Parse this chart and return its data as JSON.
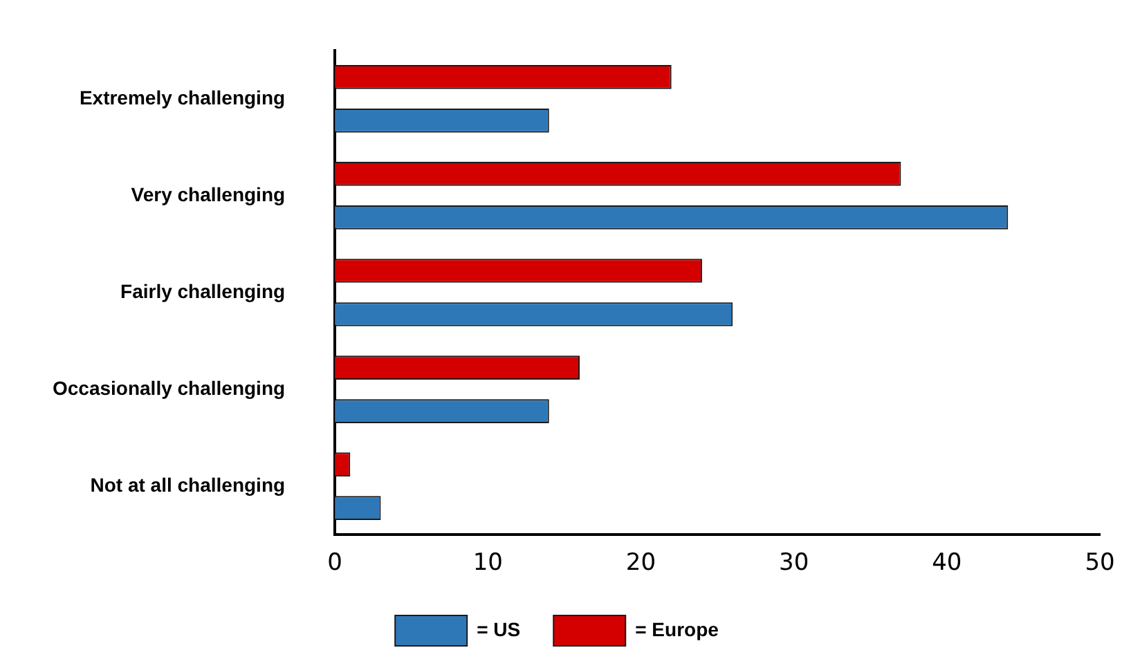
{
  "chart_data": {
    "type": "bar",
    "orientation": "horizontal",
    "categories": [
      "Extremely challenging",
      "Very challenging",
      "Fairly challenging",
      "Occasionally challenging",
      "Not at all challenging"
    ],
    "series": [
      {
        "name": "= Europe",
        "color": "#d40000",
        "values": [
          22,
          37,
          24,
          16,
          1
        ]
      },
      {
        "name": "= US",
        "color": "#2f78b8",
        "values": [
          14,
          44,
          26,
          14,
          3
        ]
      }
    ],
    "xlim": [
      0,
      50
    ],
    "xticks": [
      0,
      10,
      20,
      30,
      40,
      50
    ],
    "grid": false,
    "legend": "bottom"
  }
}
